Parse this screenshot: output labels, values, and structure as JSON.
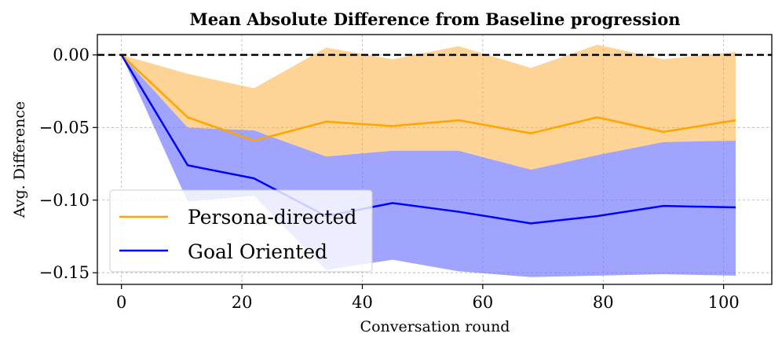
{
  "chart_data": {
    "type": "line",
    "title": "Mean Absolute Difference from Baseline progression",
    "xlabel": "Conversation round",
    "ylabel": "Avg. Difference",
    "xlim": [
      -4,
      108
    ],
    "ylim": [
      -0.158,
      0.014
    ],
    "xticks": [
      0,
      20,
      40,
      60,
      80,
      100
    ],
    "yticks": [
      0.0,
      -0.05,
      -0.1,
      -0.15
    ],
    "ytick_labels": [
      "0.00",
      "−0.05",
      "−0.10",
      "−0.15"
    ],
    "grid": true,
    "legend_position": "lower-left",
    "reference_line": {
      "y": 0.0,
      "style": "dashed",
      "color": "#000000"
    },
    "x": [
      0,
      11,
      22,
      34,
      45,
      56,
      68,
      79,
      90,
      102
    ],
    "series": [
      {
        "name": "Persona-directed",
        "color": "#FFA500",
        "band_color": "#FBB040",
        "values": [
          0.0,
          -0.043,
          -0.059,
          -0.046,
          -0.049,
          -0.045,
          -0.054,
          -0.043,
          -0.053,
          -0.045
        ],
        "upper": [
          0.0,
          -0.013,
          -0.023,
          0.005,
          -0.003,
          0.006,
          -0.009,
          0.007,
          -0.003,
          0.002
        ],
        "lower": [
          0.0,
          -0.05,
          -0.052,
          -0.07,
          -0.066,
          -0.066,
          -0.079,
          -0.069,
          -0.06,
          -0.059
        ]
      },
      {
        "name": "Goal Oriented",
        "color": "#0000FF",
        "band_color": "#6F73FF",
        "values": [
          0.0,
          -0.076,
          -0.085,
          -0.111,
          -0.102,
          -0.108,
          -0.116,
          -0.111,
          -0.104,
          -0.105
        ],
        "upper": [
          0.0,
          -0.05,
          -0.052,
          -0.07,
          -0.066,
          -0.066,
          -0.079,
          -0.069,
          -0.06,
          -0.059
        ],
        "lower": [
          0.0,
          -0.101,
          -0.097,
          -0.148,
          -0.141,
          -0.149,
          -0.153,
          -0.152,
          -0.151,
          -0.152
        ]
      }
    ]
  }
}
